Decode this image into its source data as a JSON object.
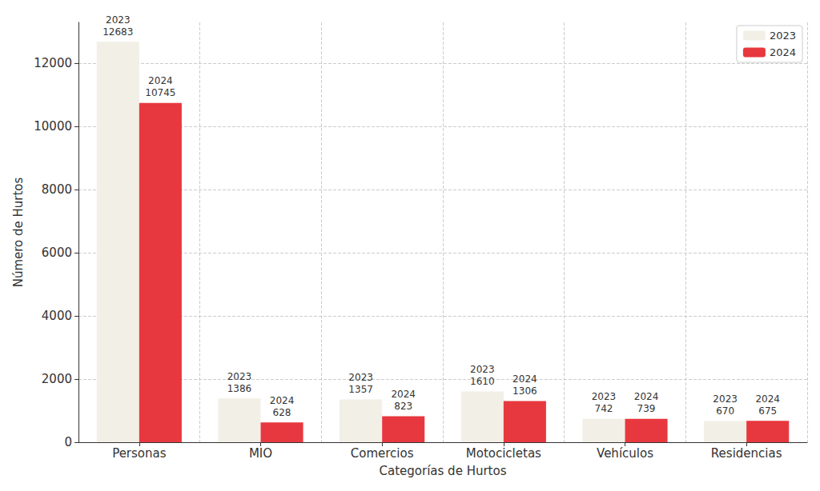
{
  "chart_data": {
    "type": "bar",
    "xlabel": "Categorías de Hurtos",
    "ylabel": "Número de Hurtos",
    "categories": [
      "Personas",
      "MIO",
      "Comercios",
      "Motocicletas",
      "Vehículos",
      "Residencias"
    ],
    "series": [
      {
        "name": "2023",
        "color": "#f2efe6",
        "values": [
          12683,
          1386,
          1357,
          1610,
          742,
          670
        ]
      },
      {
        "name": "2024",
        "color": "#e8383f",
        "values": [
          10745,
          628,
          823,
          1306,
          739,
          675
        ]
      }
    ],
    "ylim": [
      0,
      13300
    ],
    "yticks": [
      0,
      2000,
      4000,
      6000,
      8000,
      10000,
      12000
    ],
    "grid": true,
    "legend": "upper right",
    "data_labels": true
  }
}
